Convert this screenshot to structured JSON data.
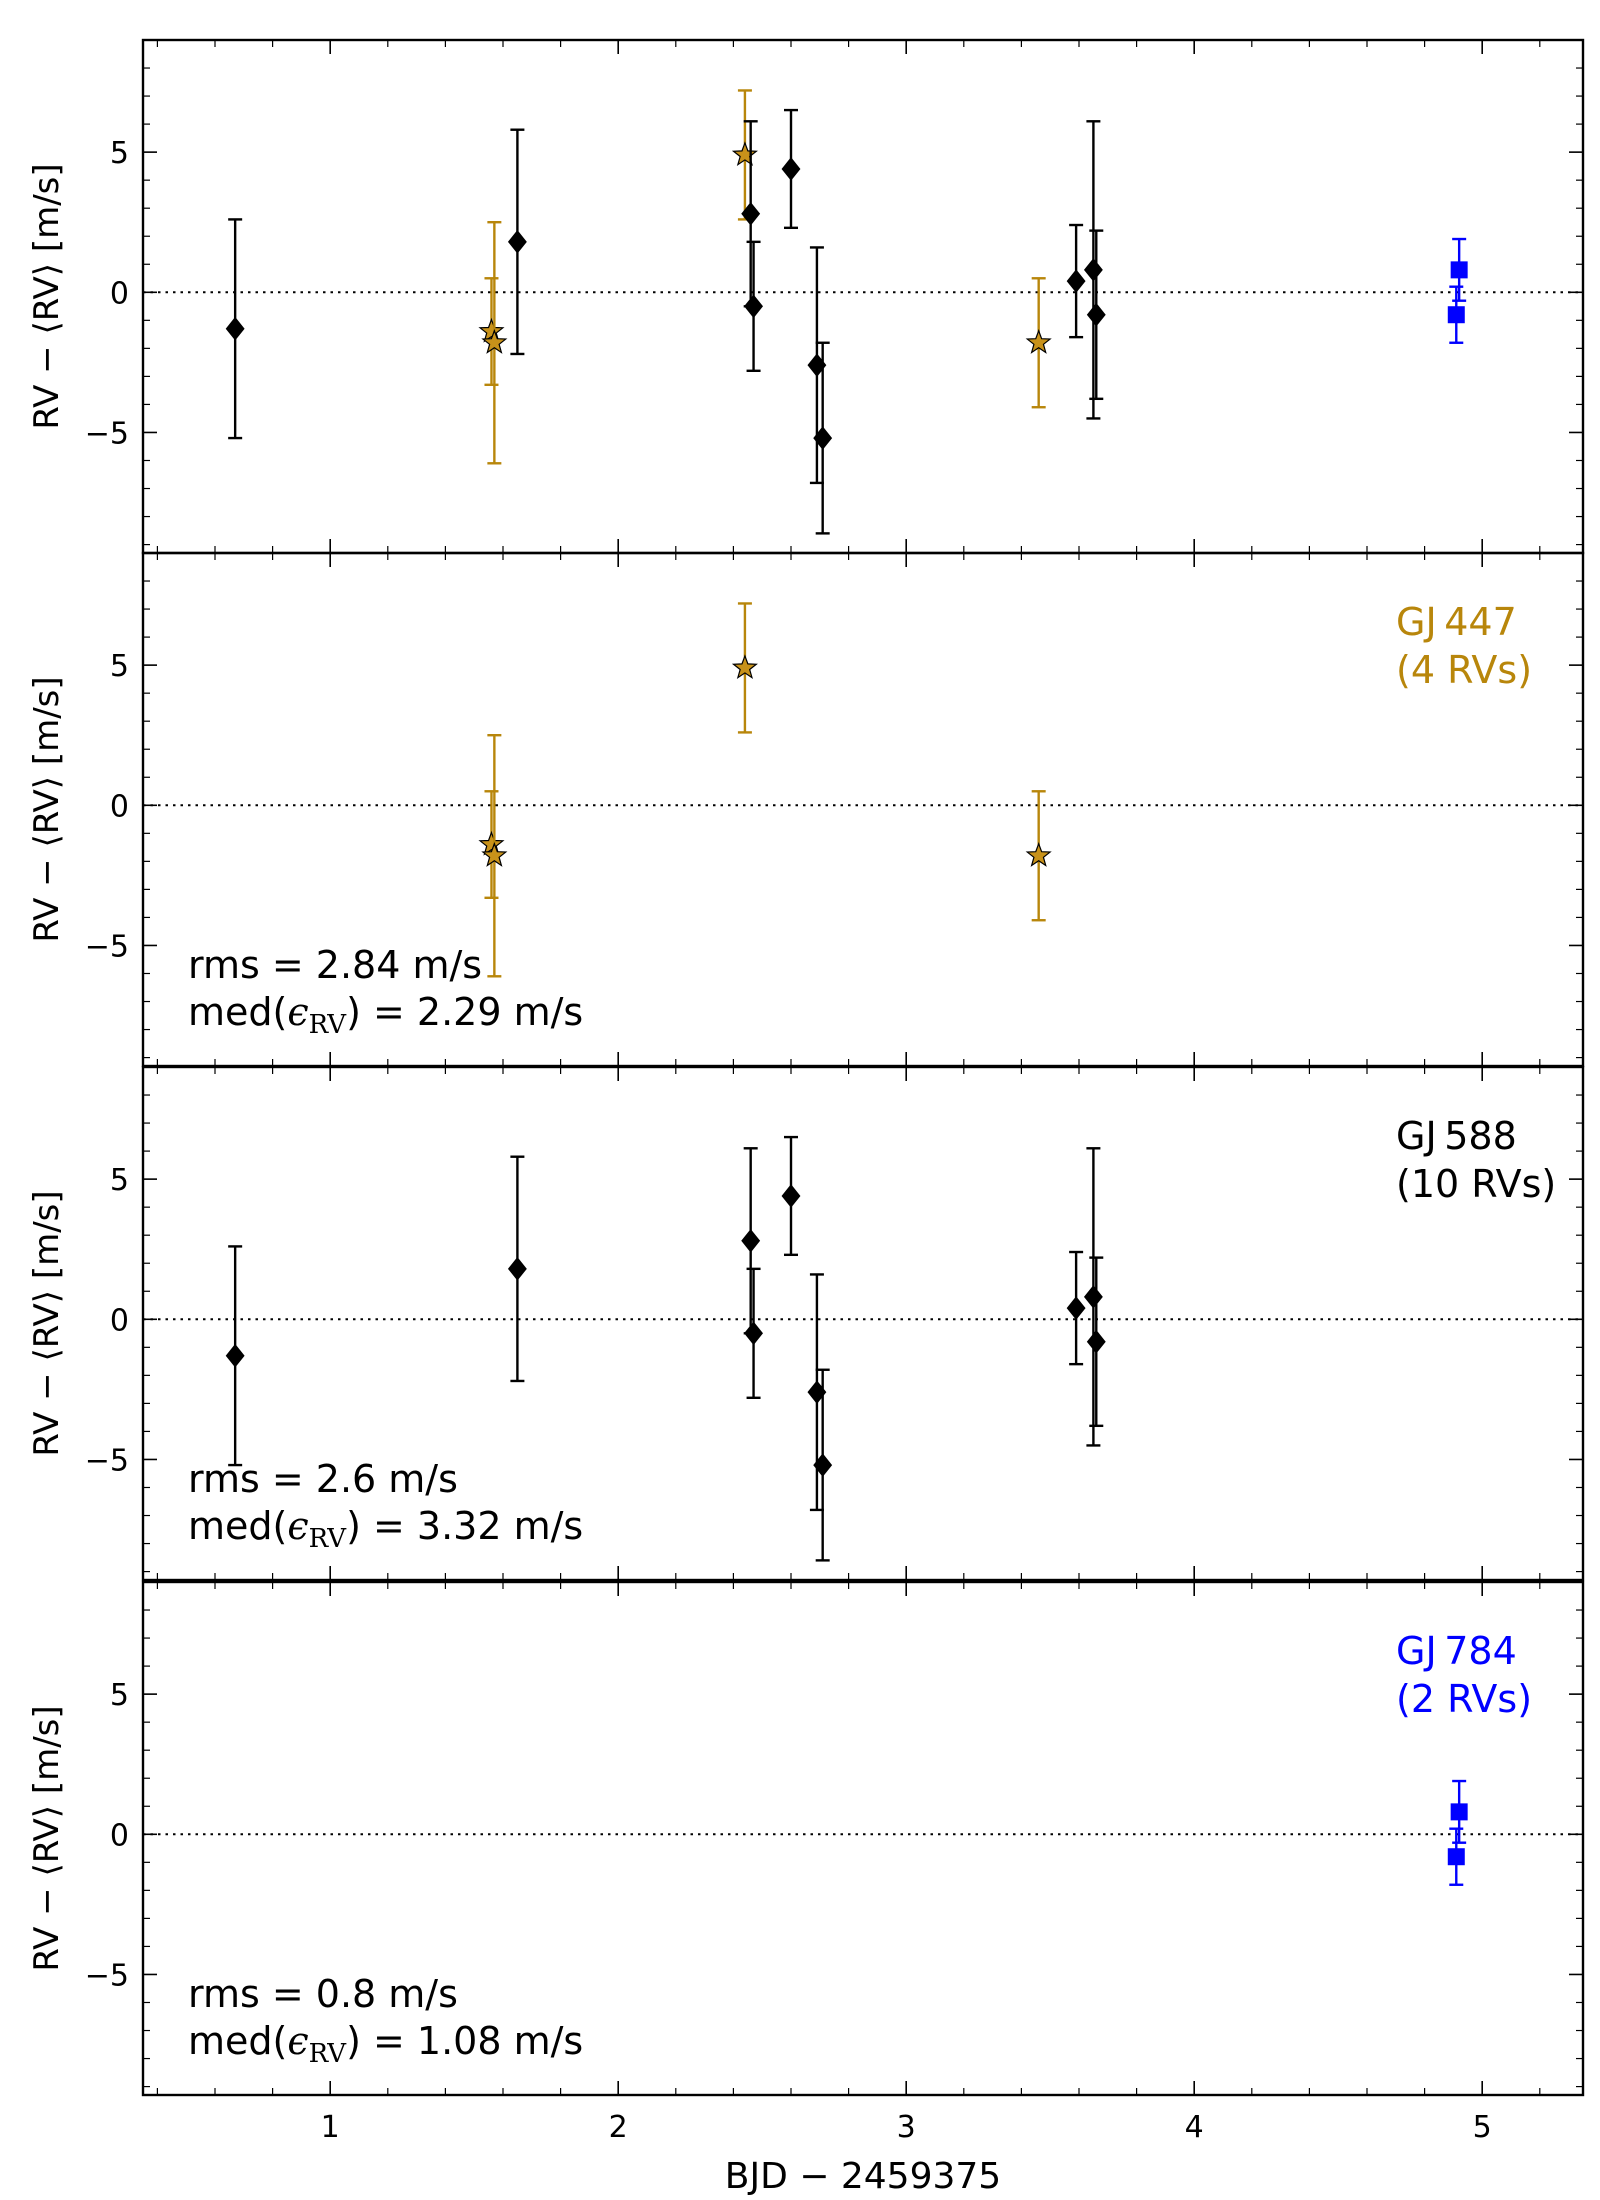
{
  "colors": {
    "gj447": "#b8860b",
    "gj588": "#000000",
    "gj784": "#0000ff"
  },
  "chart_data": {
    "type": "scatter",
    "xlabel": "BJD − 2459375",
    "ylabel": "RV − ⟨RV⟩ [m/s]",
    "xlim": [
      0.35,
      5.35
    ],
    "ylim": [
      -9.3,
      9.0
    ],
    "xticks": [
      1,
      2,
      3,
      4,
      5
    ],
    "yticks": [
      -5,
      0,
      5
    ],
    "series": {
      "gj447": {
        "name": "GJ 447",
        "marker": "star",
        "x": [
          1.56,
          1.57,
          2.44,
          3.46
        ],
        "y": [
          -1.4,
          -1.8,
          4.9,
          -1.8
        ],
        "err": [
          1.9,
          4.3,
          2.3,
          2.3
        ]
      },
      "gj588": {
        "name": "GJ 588",
        "marker": "diamond",
        "x": [
          0.67,
          1.65,
          2.46,
          2.47,
          2.6,
          2.69,
          2.71,
          3.59,
          3.65,
          3.66
        ],
        "y": [
          -1.3,
          1.8,
          2.8,
          -0.5,
          4.4,
          -2.6,
          -5.2,
          0.4,
          0.8,
          -0.8
        ],
        "err": [
          3.9,
          4.0,
          3.3,
          2.3,
          2.1,
          4.2,
          3.4,
          2.0,
          5.3,
          3.0
        ]
      },
      "gj784": {
        "name": "GJ 784",
        "marker": "square",
        "x": [
          4.91,
          4.92
        ],
        "y": [
          -0.8,
          0.8
        ],
        "err": [
          1.0,
          1.1
        ]
      }
    },
    "panels": [
      {
        "series": [
          "gj447",
          "gj588",
          "gj784"
        ]
      },
      {
        "series": [
          "gj447"
        ],
        "label_line1": "GJ 447",
        "label_line2": "(4 RVs)",
        "label_color": "gj447",
        "rms_text": "rms = 2.84 m/s",
        "med_prefix": "med(",
        "med_suffix": ") = 2.29 m/s"
      },
      {
        "series": [
          "gj588"
        ],
        "label_line1": "GJ 588",
        "label_line2": "(10 RVs)",
        "label_color": "gj588",
        "rms_text": "rms = 2.6 m/s",
        "med_prefix": "med(",
        "med_suffix": ") = 3.32 m/s"
      },
      {
        "series": [
          "gj784"
        ],
        "label_line1": "GJ 784",
        "label_line2": "(2 RVs)",
        "label_color": "gj784",
        "rms_text": "rms = 0.8 m/s",
        "med_prefix": "med(",
        "med_suffix": ") = 1.08 m/s"
      }
    ],
    "eps_symbol": "ϵ",
    "eps_subscript": "RV"
  }
}
